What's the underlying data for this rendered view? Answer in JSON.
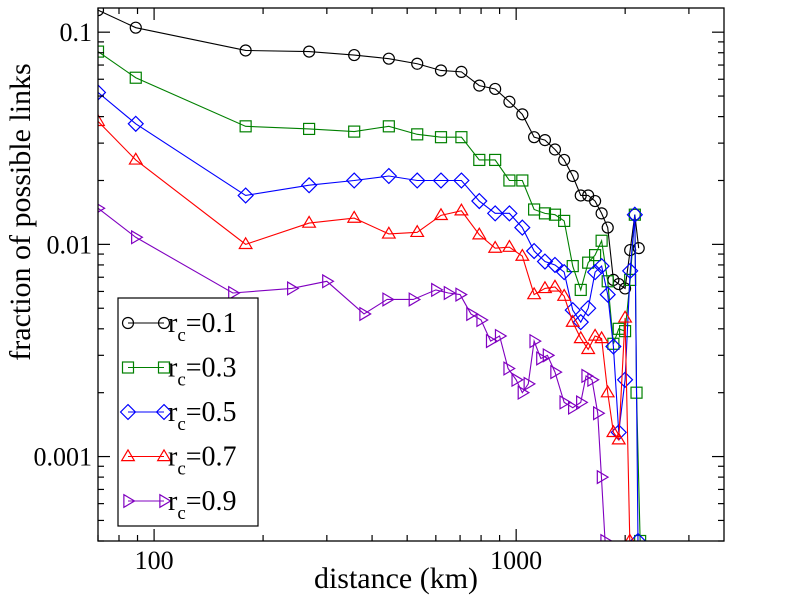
{
  "chart_data": {
    "type": "line",
    "title": "",
    "xlabel": "distance (km)",
    "ylabel": "fraction of possible links",
    "x_scale": "log",
    "y_scale": "log",
    "xlim": [
      70,
      3750
    ],
    "ylim": [
      0.0004,
      0.13
    ],
    "x_tick_labels": [
      "100",
      "1000"
    ],
    "y_tick_labels": [
      "0.1",
      "0.01",
      "0.001"
    ],
    "grid": false,
    "legend_position": "bottom-left",
    "series": [
      {
        "name": "r_c=0.1",
        "legend_text": "r",
        "legend_sub": "c",
        "legend_value": "=0.1",
        "color": "#000000",
        "marker": "circle",
        "points": [
          [
            70,
            0.127
          ],
          [
            89,
            0.105
          ],
          [
            179,
            0.082
          ],
          [
            268,
            0.081
          ],
          [
            357,
            0.078
          ],
          [
            445,
            0.075
          ],
          [
            533,
            0.071
          ],
          [
            620,
            0.066
          ],
          [
            706,
            0.065
          ],
          [
            791,
            0.056
          ],
          [
            875,
            0.054
          ],
          [
            958,
            0.047
          ],
          [
            1040,
            0.041
          ],
          [
            1121,
            0.032
          ],
          [
            1201,
            0.031
          ],
          [
            1280,
            0.028
          ],
          [
            1357,
            0.025
          ],
          [
            1433,
            0.021
          ],
          [
            1508,
            0.017
          ],
          [
            1581,
            0.017
          ],
          [
            1652,
            0.016
          ],
          [
            1722,
            0.014
          ],
          [
            1790,
            0.012
          ],
          [
            1856,
            0.0068
          ],
          [
            1920,
            0.0065
          ],
          [
            1999,
            0.0062
          ],
          [
            2065,
            0.0094
          ],
          [
            2127,
            0.0138
          ],
          [
            2180,
            0.0096
          ]
        ]
      },
      {
        "name": "r_c=0.3",
        "legend_text": "r",
        "legend_sub": "c",
        "legend_value": "=0.3",
        "color": "#008000",
        "marker": "square",
        "points": [
          [
            70,
            0.081
          ],
          [
            89,
            0.061
          ],
          [
            179,
            0.036
          ],
          [
            268,
            0.035
          ],
          [
            357,
            0.034
          ],
          [
            445,
            0.036
          ],
          [
            533,
            0.033
          ],
          [
            620,
            0.032
          ],
          [
            706,
            0.032
          ],
          [
            791,
            0.025
          ],
          [
            875,
            0.025
          ],
          [
            958,
            0.02
          ],
          [
            1040,
            0.02
          ],
          [
            1121,
            0.0146
          ],
          [
            1201,
            0.014
          ],
          [
            1280,
            0.0138
          ],
          [
            1357,
            0.0129
          ],
          [
            1433,
            0.0079
          ],
          [
            1508,
            0.0061
          ],
          [
            1581,
            0.0082
          ],
          [
            1652,
            0.0089
          ],
          [
            1722,
            0.0104
          ],
          [
            1790,
            0.0067
          ],
          [
            1856,
            0.0034
          ],
          [
            1920,
            0.004
          ],
          [
            1999,
            0.0039
          ],
          [
            2065,
            0.0068
          ],
          [
            2127,
            0.0138
          ],
          [
            2150,
            0.002
          ],
          [
            2200,
            0.0004
          ]
        ]
      },
      {
        "name": "r_c=0.5",
        "legend_text": "r",
        "legend_sub": "c",
        "legend_value": "=0.5",
        "color": "#0000ff",
        "marker": "diamond",
        "points": [
          [
            70,
            0.052
          ],
          [
            89,
            0.037
          ],
          [
            179,
            0.017
          ],
          [
            268,
            0.019
          ],
          [
            357,
            0.02
          ],
          [
            445,
            0.021
          ],
          [
            533,
            0.02
          ],
          [
            620,
            0.02
          ],
          [
            706,
            0.02
          ],
          [
            791,
            0.016
          ],
          [
            875,
            0.014
          ],
          [
            958,
            0.014
          ],
          [
            1040,
            0.012
          ],
          [
            1121,
            0.0093
          ],
          [
            1201,
            0.0083
          ],
          [
            1280,
            0.008
          ],
          [
            1357,
            0.0074
          ],
          [
            1433,
            0.0049
          ],
          [
            1508,
            0.0043
          ],
          [
            1581,
            0.005
          ],
          [
            1652,
            0.0074
          ],
          [
            1722,
            0.0079
          ],
          [
            1790,
            0.0058
          ],
          [
            1856,
            0.0033
          ],
          [
            1920,
            0.0013
          ],
          [
            1999,
            0.0023
          ],
          [
            2065,
            0.0075
          ],
          [
            2127,
            0.0138
          ],
          [
            2170,
            0.0004
          ]
        ]
      },
      {
        "name": "r_c=0.7",
        "legend_text": "r",
        "legend_sub": "c",
        "legend_value": "=0.7",
        "color": "#ff0000",
        "marker": "triangle-up",
        "points": [
          [
            70,
            0.038
          ],
          [
            89,
            0.025
          ],
          [
            179,
            0.01
          ],
          [
            268,
            0.0126
          ],
          [
            357,
            0.0133
          ],
          [
            445,
            0.0112
          ],
          [
            533,
            0.0114
          ],
          [
            620,
            0.0137
          ],
          [
            706,
            0.0144
          ],
          [
            791,
            0.0111
          ],
          [
            875,
            0.0096
          ],
          [
            958,
            0.0097
          ],
          [
            1040,
            0.0088
          ],
          [
            1121,
            0.0058
          ],
          [
            1201,
            0.0062
          ],
          [
            1280,
            0.0063
          ],
          [
            1357,
            0.0057
          ],
          [
            1433,
            0.0043
          ],
          [
            1508,
            0.0036
          ],
          [
            1581,
            0.0032
          ],
          [
            1652,
            0.0037
          ],
          [
            1722,
            0.0036
          ],
          [
            1790,
            0.002
          ],
          [
            1856,
            0.0013
          ],
          [
            1920,
            0.0012
          ],
          [
            1999,
            0.0045
          ],
          [
            2060,
            0.0004
          ]
        ]
      },
      {
        "name": "r_c=0.9",
        "legend_text": "r",
        "legend_sub": "c",
        "legend_value": "=0.9",
        "color": "#8000c0",
        "marker": "triangle-right",
        "points": [
          [
            70,
            0.0148
          ],
          [
            89,
            0.0108
          ],
          [
            165,
            0.0059
          ],
          [
            240,
            0.0062
          ],
          [
            300,
            0.0067
          ],
          [
            380,
            0.0047
          ],
          [
            440,
            0.0055
          ],
          [
            520,
            0.0055
          ],
          [
            600,
            0.0061
          ],
          [
            650,
            0.0059
          ],
          [
            700,
            0.0058
          ],
          [
            750,
            0.0047
          ],
          [
            800,
            0.0044
          ],
          [
            850,
            0.0035
          ],
          [
            900,
            0.0037
          ],
          [
            950,
            0.0026
          ],
          [
            1000,
            0.0023
          ],
          [
            1040,
            0.002
          ],
          [
            1080,
            0.0022
          ],
          [
            1121,
            0.0035
          ],
          [
            1170,
            0.0029
          ],
          [
            1220,
            0.003
          ],
          [
            1280,
            0.0025
          ],
          [
            1357,
            0.0018
          ],
          [
            1433,
            0.0017
          ],
          [
            1508,
            0.0018
          ],
          [
            1560,
            0.0024
          ],
          [
            1620,
            0.0023
          ],
          [
            1680,
            0.0016
          ],
          [
            1720,
            0.0008
          ],
          [
            1760,
            0.0004
          ]
        ]
      }
    ]
  }
}
